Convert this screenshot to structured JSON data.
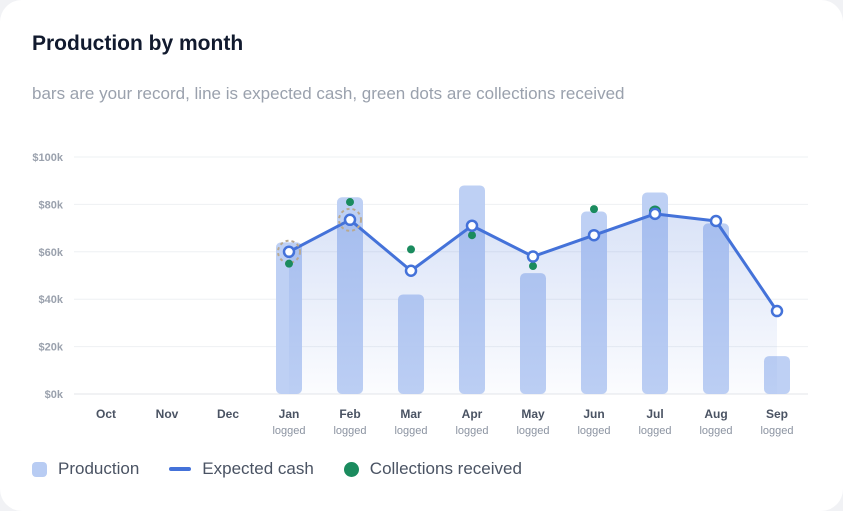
{
  "card": {
    "title": "Production by month",
    "subtitle": "bars are your record, line is expected cash, green dots are collections received"
  },
  "legend": {
    "production_label": "Production",
    "expected_label": "Expected cash",
    "collections_label": "Collections received"
  },
  "colors": {
    "bar": "#b8ccf3",
    "line": "#4472d9",
    "collections": "#1b8b5e",
    "highlight_ring": "#b9a990"
  },
  "chart_data": {
    "type": "bar",
    "title": "Production by month",
    "categories": [
      "Oct",
      "Nov",
      "Dec",
      "Jan",
      "Feb",
      "Mar",
      "Apr",
      "May",
      "Jun",
      "Jul",
      "Aug",
      "Sep"
    ],
    "sublabels": [
      "",
      "",
      "",
      "logged",
      "logged",
      "logged",
      "logged",
      "logged",
      "logged",
      "logged",
      "logged",
      "logged"
    ],
    "y_ticks": [
      "$0k",
      "$20k",
      "$40k",
      "$60k",
      "$80k",
      "$100k"
    ],
    "ylim": [
      0,
      100000
    ],
    "grid": true,
    "legend_position": "bottom-left",
    "highlighted_months": [
      "Jan",
      "Feb"
    ],
    "series": [
      {
        "name": "Production",
        "kind": "bar",
        "values": [
          null,
          null,
          null,
          64000,
          83000,
          42000,
          88000,
          51000,
          77000,
          85000,
          72000,
          16000
        ]
      },
      {
        "name": "Expected cash",
        "kind": "line",
        "values": [
          null,
          null,
          null,
          60000,
          73500,
          52000,
          71000,
          58000,
          67000,
          76000,
          73000,
          35000
        ]
      },
      {
        "name": "Collections received",
        "kind": "dot",
        "values": [
          null,
          null,
          null,
          55000,
          81000,
          61000,
          67000,
          54000,
          78000,
          77000,
          73000,
          null
        ]
      }
    ]
  }
}
